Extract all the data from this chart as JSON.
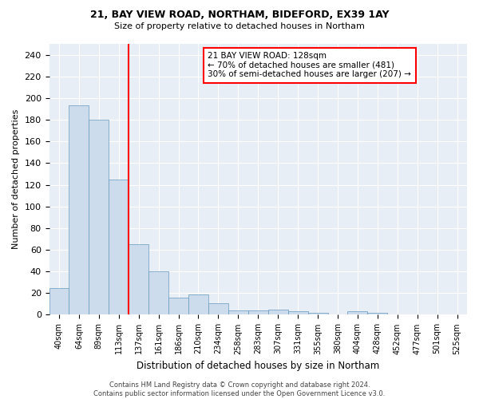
{
  "title1": "21, BAY VIEW ROAD, NORTHAM, BIDEFORD, EX39 1AY",
  "title2": "Size of property relative to detached houses in Northam",
  "xlabel": "Distribution of detached houses by size in Northam",
  "ylabel": "Number of detached properties",
  "bar_labels": [
    "40sqm",
    "64sqm",
    "89sqm",
    "113sqm",
    "137sqm",
    "161sqm",
    "186sqm",
    "210sqm",
    "234sqm",
    "258sqm",
    "283sqm",
    "307sqm",
    "331sqm",
    "355sqm",
    "380sqm",
    "404sqm",
    "428sqm",
    "452sqm",
    "477sqm",
    "501sqm",
    "525sqm"
  ],
  "bar_values": [
    25,
    193,
    180,
    125,
    65,
    40,
    16,
    19,
    11,
    4,
    4,
    5,
    3,
    2,
    0,
    3,
    2,
    0,
    0,
    0,
    0
  ],
  "bar_color": "#ccdcec",
  "bar_edge_color": "#6699bb",
  "vline_x": 3.5,
  "vline_color": "red",
  "annotation_text": "21 BAY VIEW ROAD: 128sqm\n← 70% of detached houses are smaller (481)\n30% of semi-detached houses are larger (207) →",
  "ylim": [
    0,
    250
  ],
  "yticks": [
    0,
    20,
    40,
    60,
    80,
    100,
    120,
    140,
    160,
    180,
    200,
    220,
    240
  ],
  "footer": "Contains HM Land Registry data © Crown copyright and database right 2024.\nContains public sector information licensed under the Open Government Licence v3.0.",
  "fig_bg_color": "#ffffff",
  "plot_bg_color": "#e8eef5"
}
